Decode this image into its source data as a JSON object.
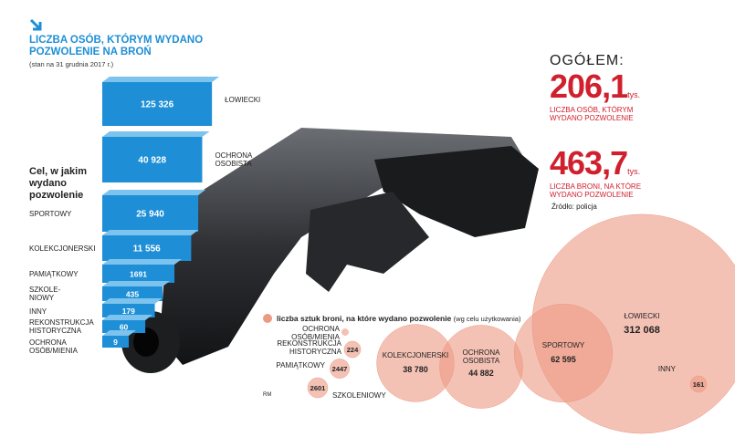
{
  "header": {
    "title": "LICZBA OSÓB, KTÓRYM WYDANO POZWOLENIE NA BROŃ",
    "subtitle": "(stan na 31 grudnia 2017 r.)"
  },
  "chart_data": [
    {
      "type": "bar",
      "title": "Cel, w jakim wydano pozwolenie",
      "categories": [
        "ŁOWIECKI",
        "OCHRONA OSOBISTA",
        "SPORTOWY",
        "KOLEKCJONERSKI",
        "PAMIĄTKOWY",
        "SZKOLE-NIOWY",
        "INNY",
        "REKONSTRUKCJA HISTORYCZNA",
        "OCHRONA OSÓB/MIENIA"
      ],
      "values": [
        125326,
        40928,
        25940,
        11556,
        1691,
        435,
        179,
        60,
        9
      ],
      "value_labels": [
        "125 326",
        "40 928",
        "25 940",
        "11 556",
        "1691",
        "435",
        "179",
        "60",
        "9"
      ],
      "color": "#1e8fd6",
      "log_scale": true
    },
    {
      "type": "bubble",
      "title": "liczba sztuk broni, na które wydano pozwolenie",
      "subtitle": "(wg celu użytkowania)",
      "categories": [
        "ŁOWIECKI",
        "SPORTOWY",
        "OCHRONA OSOBISTA",
        "KOLEKCJONERSKI",
        "SZKOLENIOWY",
        "PAMIĄTKOWY",
        "REKONSTRUKCJA HISTORYCZNA",
        "INNY",
        "OCHRONA OSÓB/MIENIA"
      ],
      "values": [
        312068,
        62595,
        44882,
        38780,
        2601,
        2447,
        224,
        161,
        5
      ],
      "value_labels": [
        "312 068",
        "62 595",
        "44 882",
        "38 780",
        "2601",
        "2447",
        "224",
        "161",
        null
      ],
      "color": "#ec9a84"
    }
  ],
  "summary": {
    "label": "OGÓŁEM:",
    "items": [
      {
        "value": "206,1",
        "unit": "tys.",
        "label": "LICZBA OSÓB, KTÓRYM WYDANO POZWOLENIE"
      },
      {
        "value": "463,7",
        "unit": "tys.",
        "label": "LICZBA BRONI, NA KTÓRE WYDANO POZWOLENIE"
      }
    ],
    "source": "Źródło: policja"
  },
  "credit": "RM"
}
